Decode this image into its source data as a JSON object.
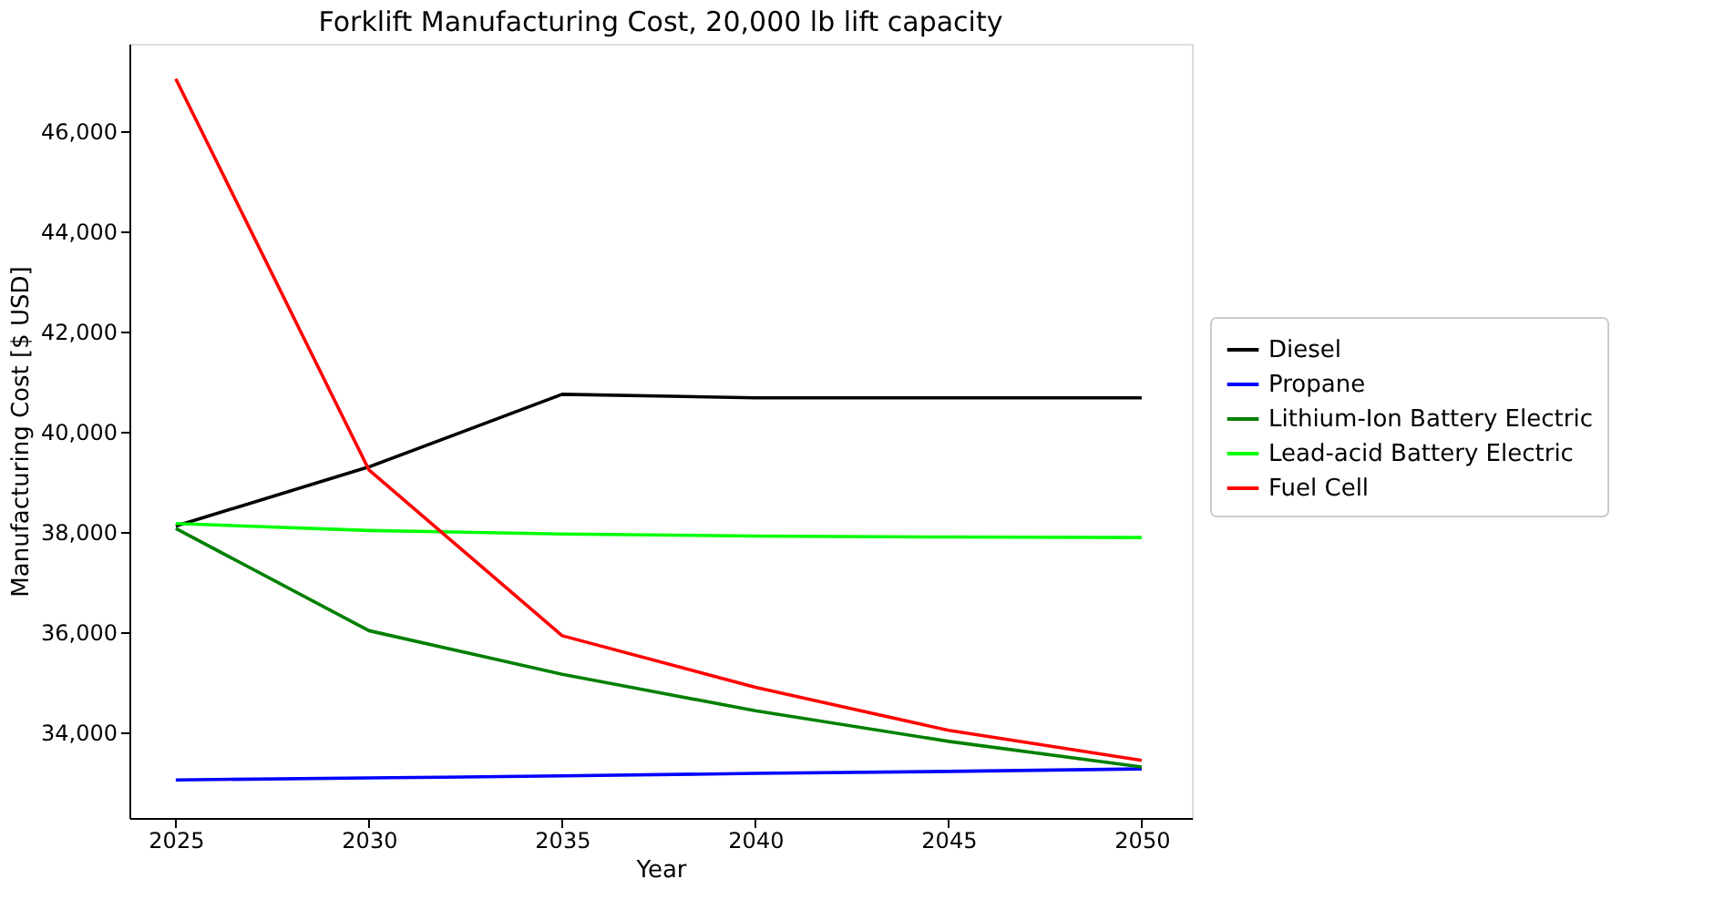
{
  "chart_data": {
    "type": "line",
    "title": "Forklift Manufacturing Cost, 20,000 lb lift capacity",
    "xlabel": "Year",
    "ylabel": "Manufacturing Cost [$ USD]",
    "x": [
      2025,
      2030,
      2035,
      2040,
      2045,
      2050
    ],
    "series": [
      {
        "name": "Diesel",
        "color": "#000000",
        "values": [
          38120,
          39300,
          40750,
          40680,
          40680,
          40680
        ]
      },
      {
        "name": "Propane",
        "color": "#0000ff",
        "values": [
          33050,
          33090,
          33130,
          33180,
          33220,
          33270
        ]
      },
      {
        "name": "Lithium-Ion Battery Electric",
        "color": "#008000",
        "values": [
          38070,
          36030,
          35160,
          34430,
          33820,
          33310
        ]
      },
      {
        "name": "Lead-acid Battery Electric",
        "color": "#00ff00",
        "values": [
          38170,
          38030,
          37960,
          37920,
          37900,
          37890
        ]
      },
      {
        "name": "Fuel Cell",
        "color": "#ff0000",
        "values": [
          47050,
          39240,
          35930,
          34900,
          34040,
          33440
        ]
      }
    ],
    "xlim": [
      2023.8,
      2051.3
    ],
    "ylim": [
      32290,
      47750
    ],
    "xticks": [
      2025,
      2030,
      2035,
      2040,
      2045,
      2050
    ],
    "yticks": [
      {
        "value": 34000,
        "label": "34,000"
      },
      {
        "value": 36000,
        "label": "36,000"
      },
      {
        "value": 38000,
        "label": "38,000"
      },
      {
        "value": 40000,
        "label": "40,000"
      },
      {
        "value": 42000,
        "label": "42,000"
      },
      {
        "value": 44000,
        "label": "44,000"
      },
      {
        "value": 46000,
        "label": "46,000"
      }
    ],
    "grid": false,
    "legend": "right",
    "marker": "none",
    "line_style": "solid"
  }
}
